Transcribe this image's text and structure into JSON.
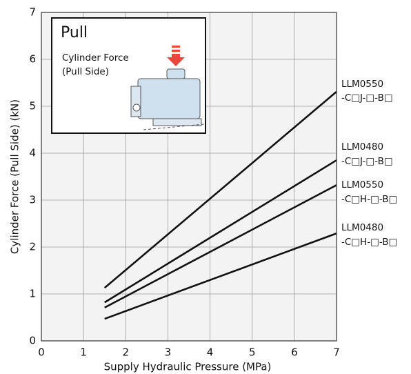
{
  "chart_data": {
    "type": "line",
    "xlabel": "Supply Hydraulic Pressure (MPa)",
    "ylabel": "Cylinder Force (Pull Side) (kN)",
    "inset": {
      "title": "Pull",
      "lines": [
        "Cylinder Force",
        "(Pull Side)"
      ]
    },
    "x": [
      1.5,
      7
    ],
    "series": [
      {
        "name": "LLM0550",
        "model_suffix": "-C□J-□-B□",
        "color": "#111111",
        "values": [
          1.13,
          5.31
        ]
      },
      {
        "name": "LLM0480",
        "model_suffix": "-C□J-□-B□",
        "color": "#111111",
        "values": [
          0.82,
          3.85
        ]
      },
      {
        "name": "LLM0550",
        "model_suffix": "-C□H-□-B□",
        "color": "#111111",
        "values": [
          0.71,
          3.32
        ]
      },
      {
        "name": "LLM0480",
        "model_suffix": "-C□H-□-B□",
        "color": "#111111",
        "values": [
          0.47,
          2.29
        ]
      }
    ],
    "xlim": [
      0,
      7
    ],
    "ylim": [
      0,
      7
    ],
    "xticks": [
      0,
      1,
      2,
      3,
      4,
      5,
      6,
      7
    ],
    "yticks": [
      0,
      1,
      2,
      3,
      4,
      5,
      6,
      7
    ],
    "grid": true
  }
}
